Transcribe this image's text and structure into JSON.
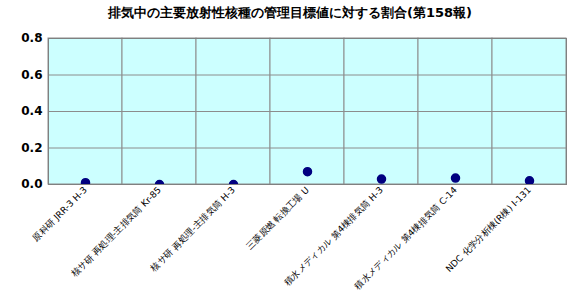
{
  "chart_data": {
    "type": "scatter",
    "title": "排気中の主要放射性核種の管理目標値に対する割合(第158報)",
    "categories": [
      "原科研 JRR-3 H-3",
      "核サ研 再処理-主排気筒 Kr-85",
      "核サ研 再処理-主排気筒 H-3",
      "三菱原燃 転換工場 U",
      "積水メディカル 第4棟排気筒 H-3",
      "積水メディカル 第4棟排気筒 C-14",
      "NDC 化学分析棟(R棟) I-131"
    ],
    "values": [
      0.01,
      0.0,
      0.0,
      0.07,
      0.03,
      0.035,
      0.02
    ],
    "color": "#000080",
    "marker": "circle",
    "ylim": [
      0,
      0.8
    ],
    "yticks": [
      {
        "value": 0,
        "label": "0.0"
      },
      {
        "value": 0.2,
        "label": "0.2"
      },
      {
        "value": 0.4,
        "label": "0.4"
      },
      {
        "value": 0.6,
        "label": "0.6"
      },
      {
        "value": 0.8,
        "label": "0.8"
      }
    ],
    "grid": true
  }
}
